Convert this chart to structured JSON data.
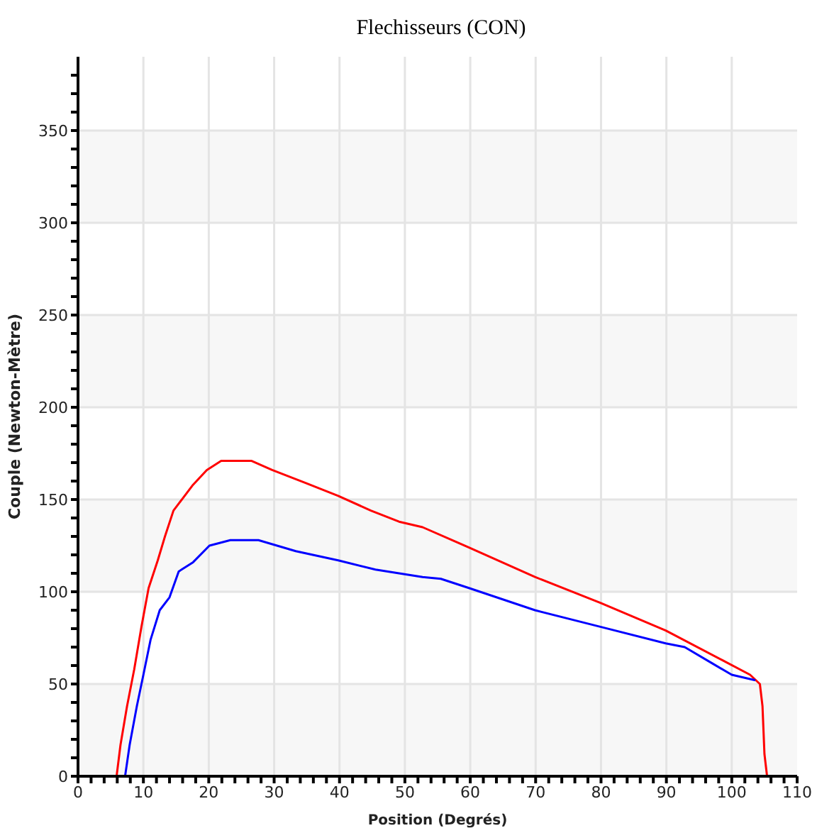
{
  "chart_data": {
    "type": "line",
    "title": "Flechisseurs (CON)",
    "xlabel": "Position (Degrés)",
    "ylabel": "Couple (Newton-Mètre)",
    "xlim": [
      0,
      110
    ],
    "ylim": [
      0,
      390
    ],
    "xticks": [
      0,
      {
        "value": 2,
        "label": null
      },
      {
        "value": 4,
        "label": null
      },
      {
        "value": 6,
        "label": null
      },
      {
        "value": 8,
        "label": null
      },
      10,
      {
        "value": 12,
        "label": null
      },
      {
        "value": 14,
        "label": null
      },
      {
        "value": 16,
        "label": null
      },
      {
        "value": 18,
        "label": null
      },
      20,
      {
        "value": 22,
        "label": null
      },
      {
        "value": 24,
        "label": null
      },
      {
        "value": 26,
        "label": null
      },
      {
        "value": 28,
        "label": null
      },
      30,
      {
        "value": 32,
        "label": null
      },
      {
        "value": 34,
        "label": null
      },
      {
        "value": 36,
        "label": null
      },
      {
        "value": 38,
        "label": null
      },
      40,
      {
        "value": 42,
        "label": null
      },
      {
        "value": 44,
        "label": null
      },
      {
        "value": 46,
        "label": null
      },
      {
        "value": 48,
        "label": null
      },
      50,
      {
        "value": 52,
        "label": null
      },
      {
        "value": 54,
        "label": null
      },
      {
        "value": 56,
        "label": null
      },
      {
        "value": 58,
        "label": null
      },
      60,
      {
        "value": 62,
        "label": null
      },
      {
        "value": 64,
        "label": null
      },
      {
        "value": 66,
        "label": null
      },
      {
        "value": 68,
        "label": null
      },
      70,
      {
        "value": 72,
        "label": null
      },
      {
        "value": 74,
        "label": null
      },
      {
        "value": 76,
        "label": null
      },
      {
        "value": 78,
        "label": null
      },
      80,
      {
        "value": 82,
        "label": null
      },
      {
        "value": 84,
        "label": null
      },
      {
        "value": 86,
        "label": null
      },
      {
        "value": 88,
        "label": null
      },
      90,
      {
        "value": 92,
        "label": null
      },
      {
        "value": 94,
        "label": null
      },
      {
        "value": 96,
        "label": null
      },
      {
        "value": 98,
        "label": null
      },
      100,
      {
        "value": 102,
        "label": null
      },
      {
        "value": 104,
        "label": null
      },
      {
        "value": 106,
        "label": null
      },
      {
        "value": 108,
        "label": null
      },
      110
    ],
    "yticks": [
      0,
      {
        "value": 10,
        "label": null
      },
      {
        "value": 20,
        "label": null
      },
      {
        "value": 30,
        "label": null
      },
      {
        "value": 40,
        "label": null
      },
      50,
      {
        "value": 60,
        "label": null
      },
      {
        "value": 70,
        "label": null
      },
      {
        "value": 80,
        "label": null
      },
      {
        "value": 90,
        "label": null
      },
      100,
      {
        "value": 110,
        "label": null
      },
      {
        "value": 120,
        "label": null
      },
      {
        "value": 130,
        "label": null
      },
      {
        "value": 140,
        "label": null
      },
      150,
      {
        "value": 160,
        "label": null
      },
      {
        "value": 170,
        "label": null
      },
      {
        "value": 180,
        "label": null
      },
      {
        "value": 190,
        "label": null
      },
      200,
      {
        "value": 210,
        "label": null
      },
      {
        "value": 220,
        "label": null
      },
      {
        "value": 230,
        "label": null
      },
      {
        "value": 240,
        "label": null
      },
      250,
      {
        "value": 260,
        "label": null
      },
      {
        "value": 270,
        "label": null
      },
      {
        "value": 280,
        "label": null
      },
      {
        "value": 290,
        "label": null
      },
      300,
      {
        "value": 310,
        "label": null
      },
      {
        "value": 320,
        "label": null
      },
      {
        "value": 330,
        "label": null
      },
      {
        "value": 340,
        "label": null
      },
      350,
      {
        "value": 360,
        "label": null
      },
      {
        "value": 370,
        "label": null
      },
      {
        "value": 380,
        "label": null
      }
    ],
    "grid": true,
    "marker": "none",
    "line_style": "solid",
    "bands": [
      {
        "axis": "y",
        "from": 0,
        "to": 50,
        "color": "#f7f7f7"
      },
      {
        "axis": "y",
        "from": 100,
        "to": 150,
        "color": "#f7f7f7"
      },
      {
        "axis": "y",
        "from": 200,
        "to": 250,
        "color": "#f7f7f7"
      },
      {
        "axis": "y",
        "from": 300,
        "to": 350,
        "color": "#f7f7f7"
      }
    ],
    "series": [
      {
        "color": "#ff0000",
        "x": [
          5.9,
          6.5,
          7.5,
          8.6,
          9.7,
          10.8,
          12.2,
          13.3,
          14.6,
          17.6,
          19.7,
          21.9,
          26.5,
          29.7,
          34.8,
          39.8,
          44.8,
          49.1,
          52.7,
          59.8,
          69.9,
          79.9,
          89.9,
          98.5,
          102.8,
          104.3,
          104.7,
          105,
          105.4
        ],
        "values": [
          0,
          17,
          38,
          58,
          81,
          102,
          117,
          130,
          144,
          158,
          166,
          171,
          171,
          166,
          159,
          152,
          144,
          138,
          135,
          124,
          108,
          94,
          79,
          63,
          55,
          50,
          38,
          12,
          0
        ]
      },
      {
        "color": "#0000ff",
        "x": [
          7.2,
          7.9,
          9,
          10,
          11.1,
          12.5,
          14,
          15.4,
          17.6,
          20.1,
          23.3,
          27.6,
          33.3,
          39.8,
          45.5,
          52.7,
          55.5,
          59.8,
          69.9,
          79.9,
          89.9,
          92.8,
          97.1,
          100,
          103.6
        ],
        "values": [
          0,
          17,
          38,
          55,
          74,
          90,
          97,
          111,
          116,
          125,
          128,
          128,
          122,
          117,
          112,
          108,
          107,
          102,
          90,
          81,
          72,
          70,
          61,
          55,
          52
        ]
      }
    ]
  }
}
